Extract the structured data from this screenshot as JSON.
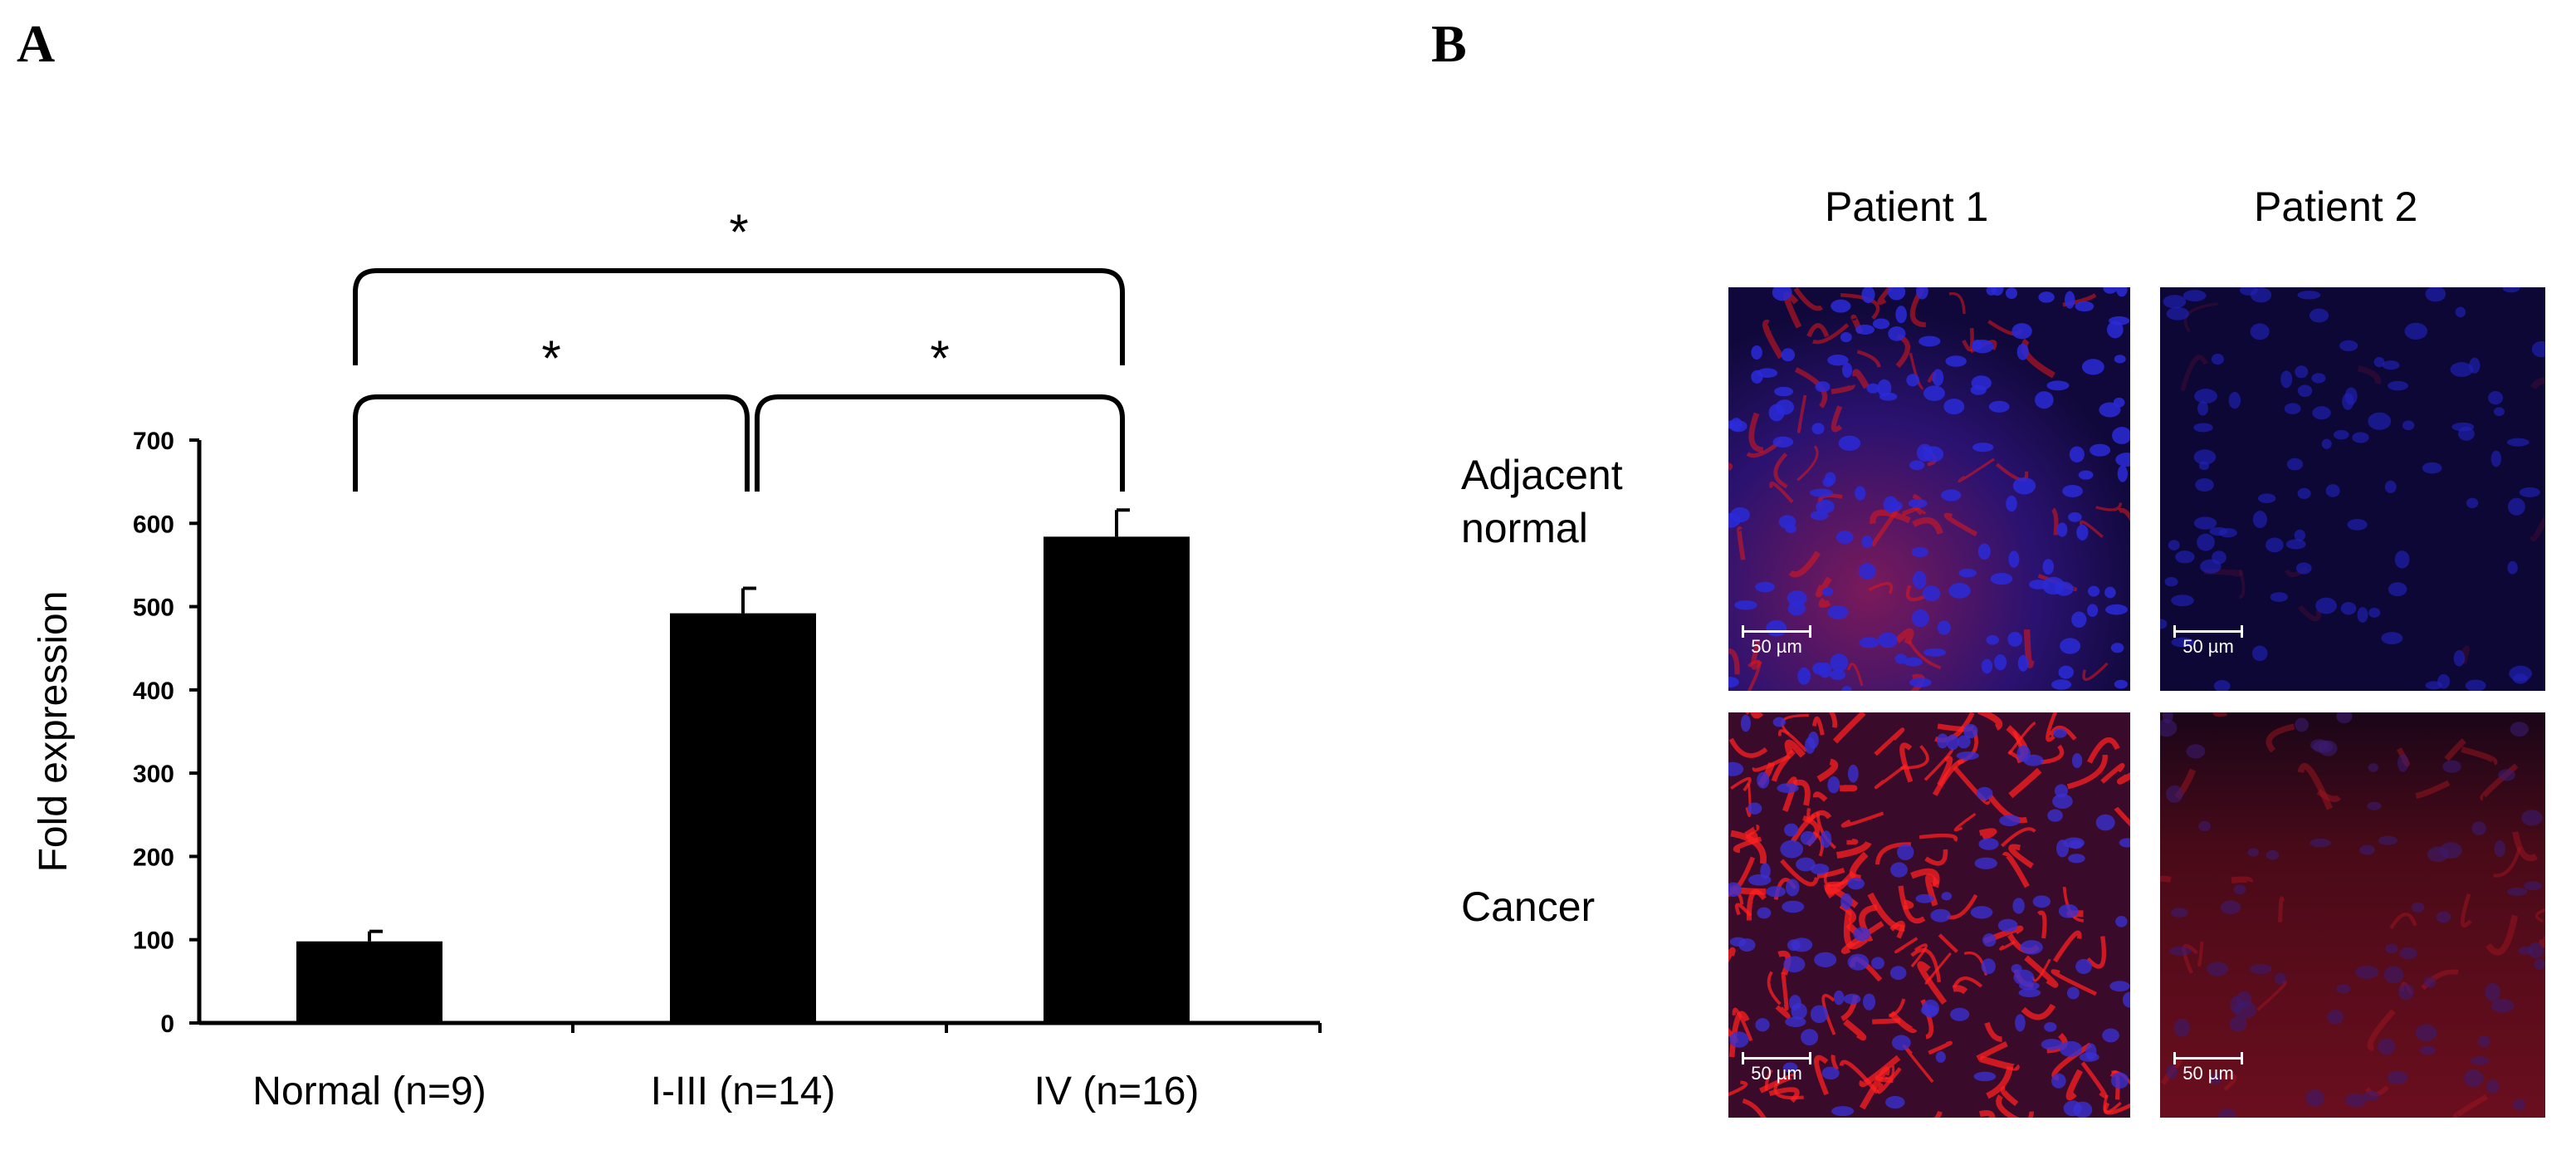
{
  "panels": {
    "a": "A",
    "b": "B"
  },
  "chart_data": {
    "type": "bar",
    "categories": [
      "Normal (n=9)",
      "I-III (n=14)",
      "IV (n=16)"
    ],
    "values": [
      98,
      492,
      584
    ],
    "errors": [
      12,
      30,
      32
    ],
    "ylabel": "Fold expression",
    "ylim": [
      0,
      700
    ],
    "yticks": [
      0,
      100,
      200,
      300,
      400,
      500,
      600,
      700
    ],
    "bar_color": "#000000",
    "significance": [
      {
        "from": 0,
        "to": 1,
        "label": "*"
      },
      {
        "from": 1,
        "to": 2,
        "label": "*"
      },
      {
        "from": 0,
        "to": 2,
        "label": "*"
      }
    ]
  },
  "micrographs": {
    "columns": [
      "Patient 1",
      "Patient 2"
    ],
    "rows": [
      "Adjacent\nnormal",
      "Cancer"
    ],
    "scale_label": "50 µm",
    "colors": {
      "nuclear_stain": "#2a2ad8",
      "marker_stain": "#e01818",
      "background": "#0a0520"
    }
  }
}
